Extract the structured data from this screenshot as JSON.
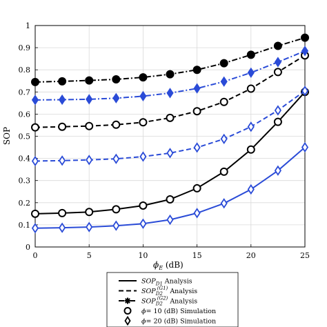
{
  "chart_data": {
    "type": "line",
    "xlabel": "ϕ_E (dB)",
    "ylabel": "SOP",
    "xlim": [
      0,
      25
    ],
    "ylim": [
      0,
      1
    ],
    "x_ticks": [
      "0",
      "5",
      "10",
      "15",
      "20",
      "25"
    ],
    "y_ticks": [
      "0",
      "0.1",
      "0.2",
      "0.3",
      "0.4",
      "0.5",
      "0.6",
      "0.7",
      "0.8",
      "0.9",
      "1"
    ],
    "grid": true,
    "legend_position": "below",
    "x": [
      0,
      2.5,
      5,
      7.5,
      10,
      12.5,
      15,
      17.5,
      20,
      22.5,
      25
    ],
    "series": [
      {
        "name": "SOP_D1 — ϕ = 10 (dB)",
        "style": "solid",
        "marker": "circle",
        "color": "#000000",
        "values": [
          0.15,
          0.153,
          0.158,
          0.17,
          0.187,
          0.215,
          0.265,
          0.34,
          0.44,
          0.565,
          0.7
        ]
      },
      {
        "name": "SOP_D1 — ϕ = 20 (dB)",
        "style": "solid",
        "marker": "diamond",
        "color": "#2a4bd7",
        "values": [
          0.085,
          0.087,
          0.09,
          0.096,
          0.105,
          0.123,
          0.153,
          0.197,
          0.26,
          0.345,
          0.45
        ]
      },
      {
        "name": "SOP_D2^(G1) — ϕ = 10 (dB)",
        "style": "dashed",
        "marker": "circle",
        "color": "#000000",
        "values": [
          0.54,
          0.543,
          0.546,
          0.552,
          0.563,
          0.583,
          0.613,
          0.655,
          0.715,
          0.79,
          0.865
        ]
      },
      {
        "name": "SOP_D2^(G1) — ϕ = 20 (dB)",
        "style": "dashed",
        "marker": "diamond",
        "color": "#2a4bd7",
        "values": [
          0.388,
          0.39,
          0.393,
          0.398,
          0.408,
          0.424,
          0.449,
          0.488,
          0.543,
          0.617,
          0.705
        ]
      },
      {
        "name": "SOP_D2^(G2) — ϕ = 10 (dB)",
        "style": "dashdot",
        "marker": "filled-circle",
        "color": "#000000",
        "values": [
          0.745,
          0.748,
          0.752,
          0.757,
          0.766,
          0.78,
          0.8,
          0.83,
          0.868,
          0.908,
          0.945
        ]
      },
      {
        "name": "SOP_D2^(G2) — ϕ = 20 (dB)",
        "style": "dashdot",
        "marker": "filled-diamond",
        "color": "#2a4bd7",
        "values": [
          0.664,
          0.665,
          0.667,
          0.672,
          0.681,
          0.695,
          0.716,
          0.747,
          0.787,
          0.835,
          0.885
        ]
      }
    ],
    "legend": [
      {
        "line": "solid",
        "marker": "",
        "sym": "SOP",
        "sub": "D1",
        "sup": "",
        "suffix": " Analysis"
      },
      {
        "line": "dashed",
        "marker": "",
        "sym": "SOP",
        "sub": "D2",
        "sup": "(G1)",
        "suffix": " Analysis"
      },
      {
        "line": "dashdot",
        "marker": "asterisk",
        "sym": "SOP",
        "sub": "D2",
        "sup": "(G2)",
        "suffix": " Analysis"
      },
      {
        "line": "",
        "marker": "circle",
        "sym": "ϕ",
        "sub": "",
        "sup": "",
        "suffix": "= 10 (dB) Simulation"
      },
      {
        "line": "",
        "marker": "diamond",
        "sym": "ϕ",
        "sub": "",
        "sup": "",
        "suffix": "= 20 (dB) Simulation"
      }
    ]
  }
}
